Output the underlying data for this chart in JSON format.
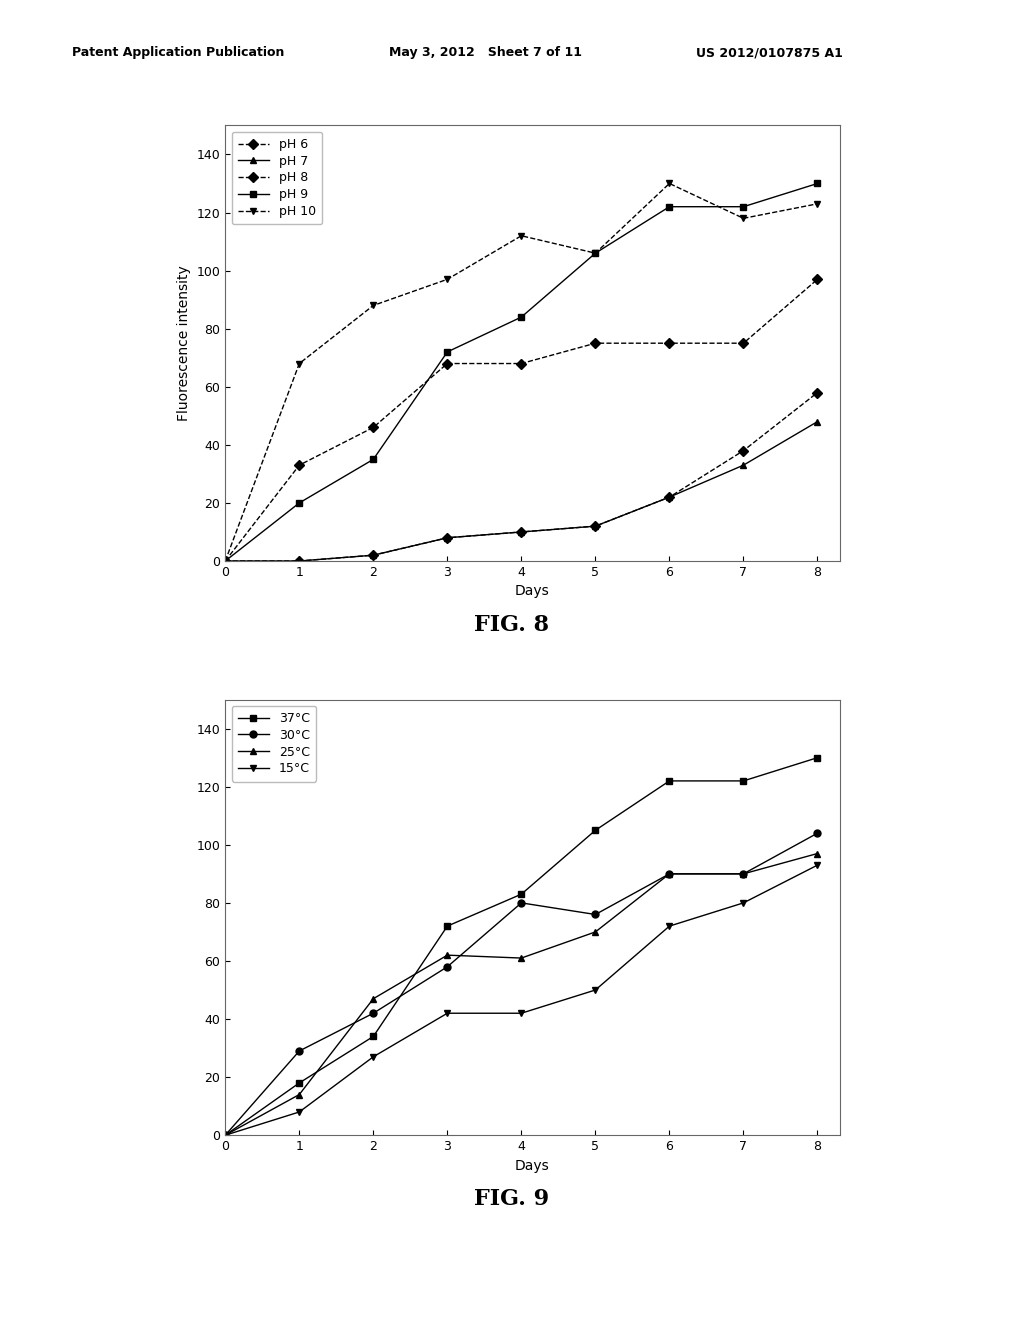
{
  "header_left": "Patent Application Publication",
  "header_center": "May 3, 2012   Sheet 7 of 11",
  "header_right": "US 2012/0107875 A1",
  "fig8": {
    "title": "FIG. 8",
    "xlabel": "Days",
    "ylabel": "Fluorescence intensity",
    "xlim": [
      0,
      8.3
    ],
    "ylim": [
      0,
      150
    ],
    "xticks": [
      0,
      1,
      2,
      3,
      4,
      5,
      6,
      7,
      8
    ],
    "yticks": [
      0,
      20,
      40,
      60,
      80,
      100,
      120,
      140
    ],
    "series": [
      {
        "label": "pH 6",
        "x": [
          0,
          1,
          2,
          3,
          4,
          5,
          6,
          7,
          8
        ],
        "y": [
          0,
          0,
          2,
          8,
          10,
          12,
          22,
          38,
          58
        ],
        "marker": "D",
        "linestyle": "--"
      },
      {
        "label": "pH 7",
        "x": [
          0,
          1,
          2,
          3,
          4,
          5,
          6,
          7,
          8
        ],
        "y": [
          0,
          0,
          2,
          8,
          10,
          12,
          22,
          33,
          48
        ],
        "marker": "^",
        "linestyle": "-"
      },
      {
        "label": "pH 8",
        "x": [
          0,
          1,
          2,
          3,
          4,
          5,
          6,
          7,
          8
        ],
        "y": [
          0,
          33,
          46,
          68,
          68,
          75,
          75,
          75,
          97
        ],
        "marker": "D",
        "linestyle": "--"
      },
      {
        "label": "pH 9",
        "x": [
          0,
          1,
          2,
          3,
          4,
          5,
          6,
          7,
          8
        ],
        "y": [
          0,
          20,
          35,
          72,
          84,
          106,
          122,
          122,
          130
        ],
        "marker": "s",
        "linestyle": "-"
      },
      {
        "label": "pH 10",
        "x": [
          0,
          1,
          2,
          3,
          4,
          5,
          6,
          7,
          8
        ],
        "y": [
          0,
          68,
          88,
          97,
          112,
          106,
          130,
          118,
          123
        ],
        "marker": "v",
        "linestyle": "--"
      }
    ]
  },
  "fig9": {
    "title": "FIG. 9",
    "xlabel": "Days",
    "ylabel": "",
    "xlim": [
      0,
      8.3
    ],
    "ylim": [
      0,
      150
    ],
    "xticks": [
      0,
      1,
      2,
      3,
      4,
      5,
      6,
      7,
      8
    ],
    "yticks": [
      0,
      20,
      40,
      60,
      80,
      100,
      120,
      140
    ],
    "series": [
      {
        "label": "37°C",
        "x": [
          0,
          1,
          2,
          3,
          4,
          5,
          6,
          7,
          8
        ],
        "y": [
          0,
          18,
          34,
          72,
          83,
          105,
          122,
          122,
          130
        ],
        "marker": "s",
        "linestyle": "-"
      },
      {
        "label": "30°C",
        "x": [
          0,
          1,
          2,
          3,
          4,
          5,
          6,
          7,
          8
        ],
        "y": [
          0,
          29,
          42,
          58,
          80,
          76,
          90,
          90,
          104
        ],
        "marker": "o",
        "linestyle": "-"
      },
      {
        "label": "25°C",
        "x": [
          0,
          1,
          2,
          3,
          4,
          5,
          6,
          7,
          8
        ],
        "y": [
          0,
          14,
          47,
          62,
          61,
          70,
          90,
          90,
          97
        ],
        "marker": "^",
        "linestyle": "-"
      },
      {
        "label": "15°C",
        "x": [
          0,
          1,
          2,
          3,
          4,
          5,
          6,
          7,
          8
        ],
        "y": [
          0,
          8,
          27,
          42,
          42,
          50,
          72,
          80,
          93
        ],
        "marker": "v",
        "linestyle": "-"
      }
    ]
  },
  "line_color": "#000000",
  "bg_color": "#ffffff",
  "fig_title_fontsize": 16,
  "axis_fontsize": 10,
  "tick_fontsize": 9,
  "legend_fontsize": 9,
  "header_fontsize": 9
}
